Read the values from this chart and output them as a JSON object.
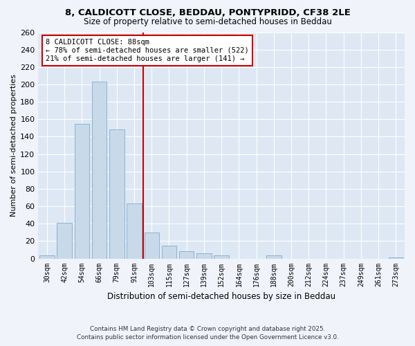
{
  "title1": "8, CALDICOTT CLOSE, BEDDAU, PONTYPRIDD, CF38 2LE",
  "title2": "Size of property relative to semi-detached houses in Beddau",
  "xlabel": "Distribution of semi-detached houses by size in Beddau",
  "ylabel": "Number of semi-detached properties",
  "categories": [
    "30sqm",
    "42sqm",
    "54sqm",
    "66sqm",
    "79sqm",
    "91sqm",
    "103sqm",
    "115sqm",
    "127sqm",
    "139sqm",
    "152sqm",
    "164sqm",
    "176sqm",
    "188sqm",
    "200sqm",
    "212sqm",
    "224sqm",
    "237sqm",
    "249sqm",
    "261sqm",
    "273sqm"
  ],
  "values": [
    4,
    41,
    155,
    203,
    148,
    63,
    30,
    15,
    8,
    6,
    4,
    0,
    0,
    4,
    0,
    0,
    0,
    0,
    0,
    0,
    1
  ],
  "bar_color": "#c8d9ea",
  "bar_edge_color": "#8ab4d4",
  "vline_x": 5.5,
  "vline_color": "#cc0000",
  "annotation_title": "8 CALDICOTT CLOSE: 88sqm",
  "annotation_line1": "← 78% of semi-detached houses are smaller (522)",
  "annotation_line2": "21% of semi-detached houses are larger (141) →",
  "annotation_box_color": "#cc0000",
  "ylim": [
    0,
    260
  ],
  "yticks": [
    0,
    20,
    40,
    60,
    80,
    100,
    120,
    140,
    160,
    180,
    200,
    220,
    240,
    260
  ],
  "footer1": "Contains HM Land Registry data © Crown copyright and database right 2025.",
  "footer2": "Contains public sector information licensed under the Open Government Licence v3.0.",
  "fig_bg_color": "#f0f4fa",
  "ax_bg_color": "#dde8f4"
}
